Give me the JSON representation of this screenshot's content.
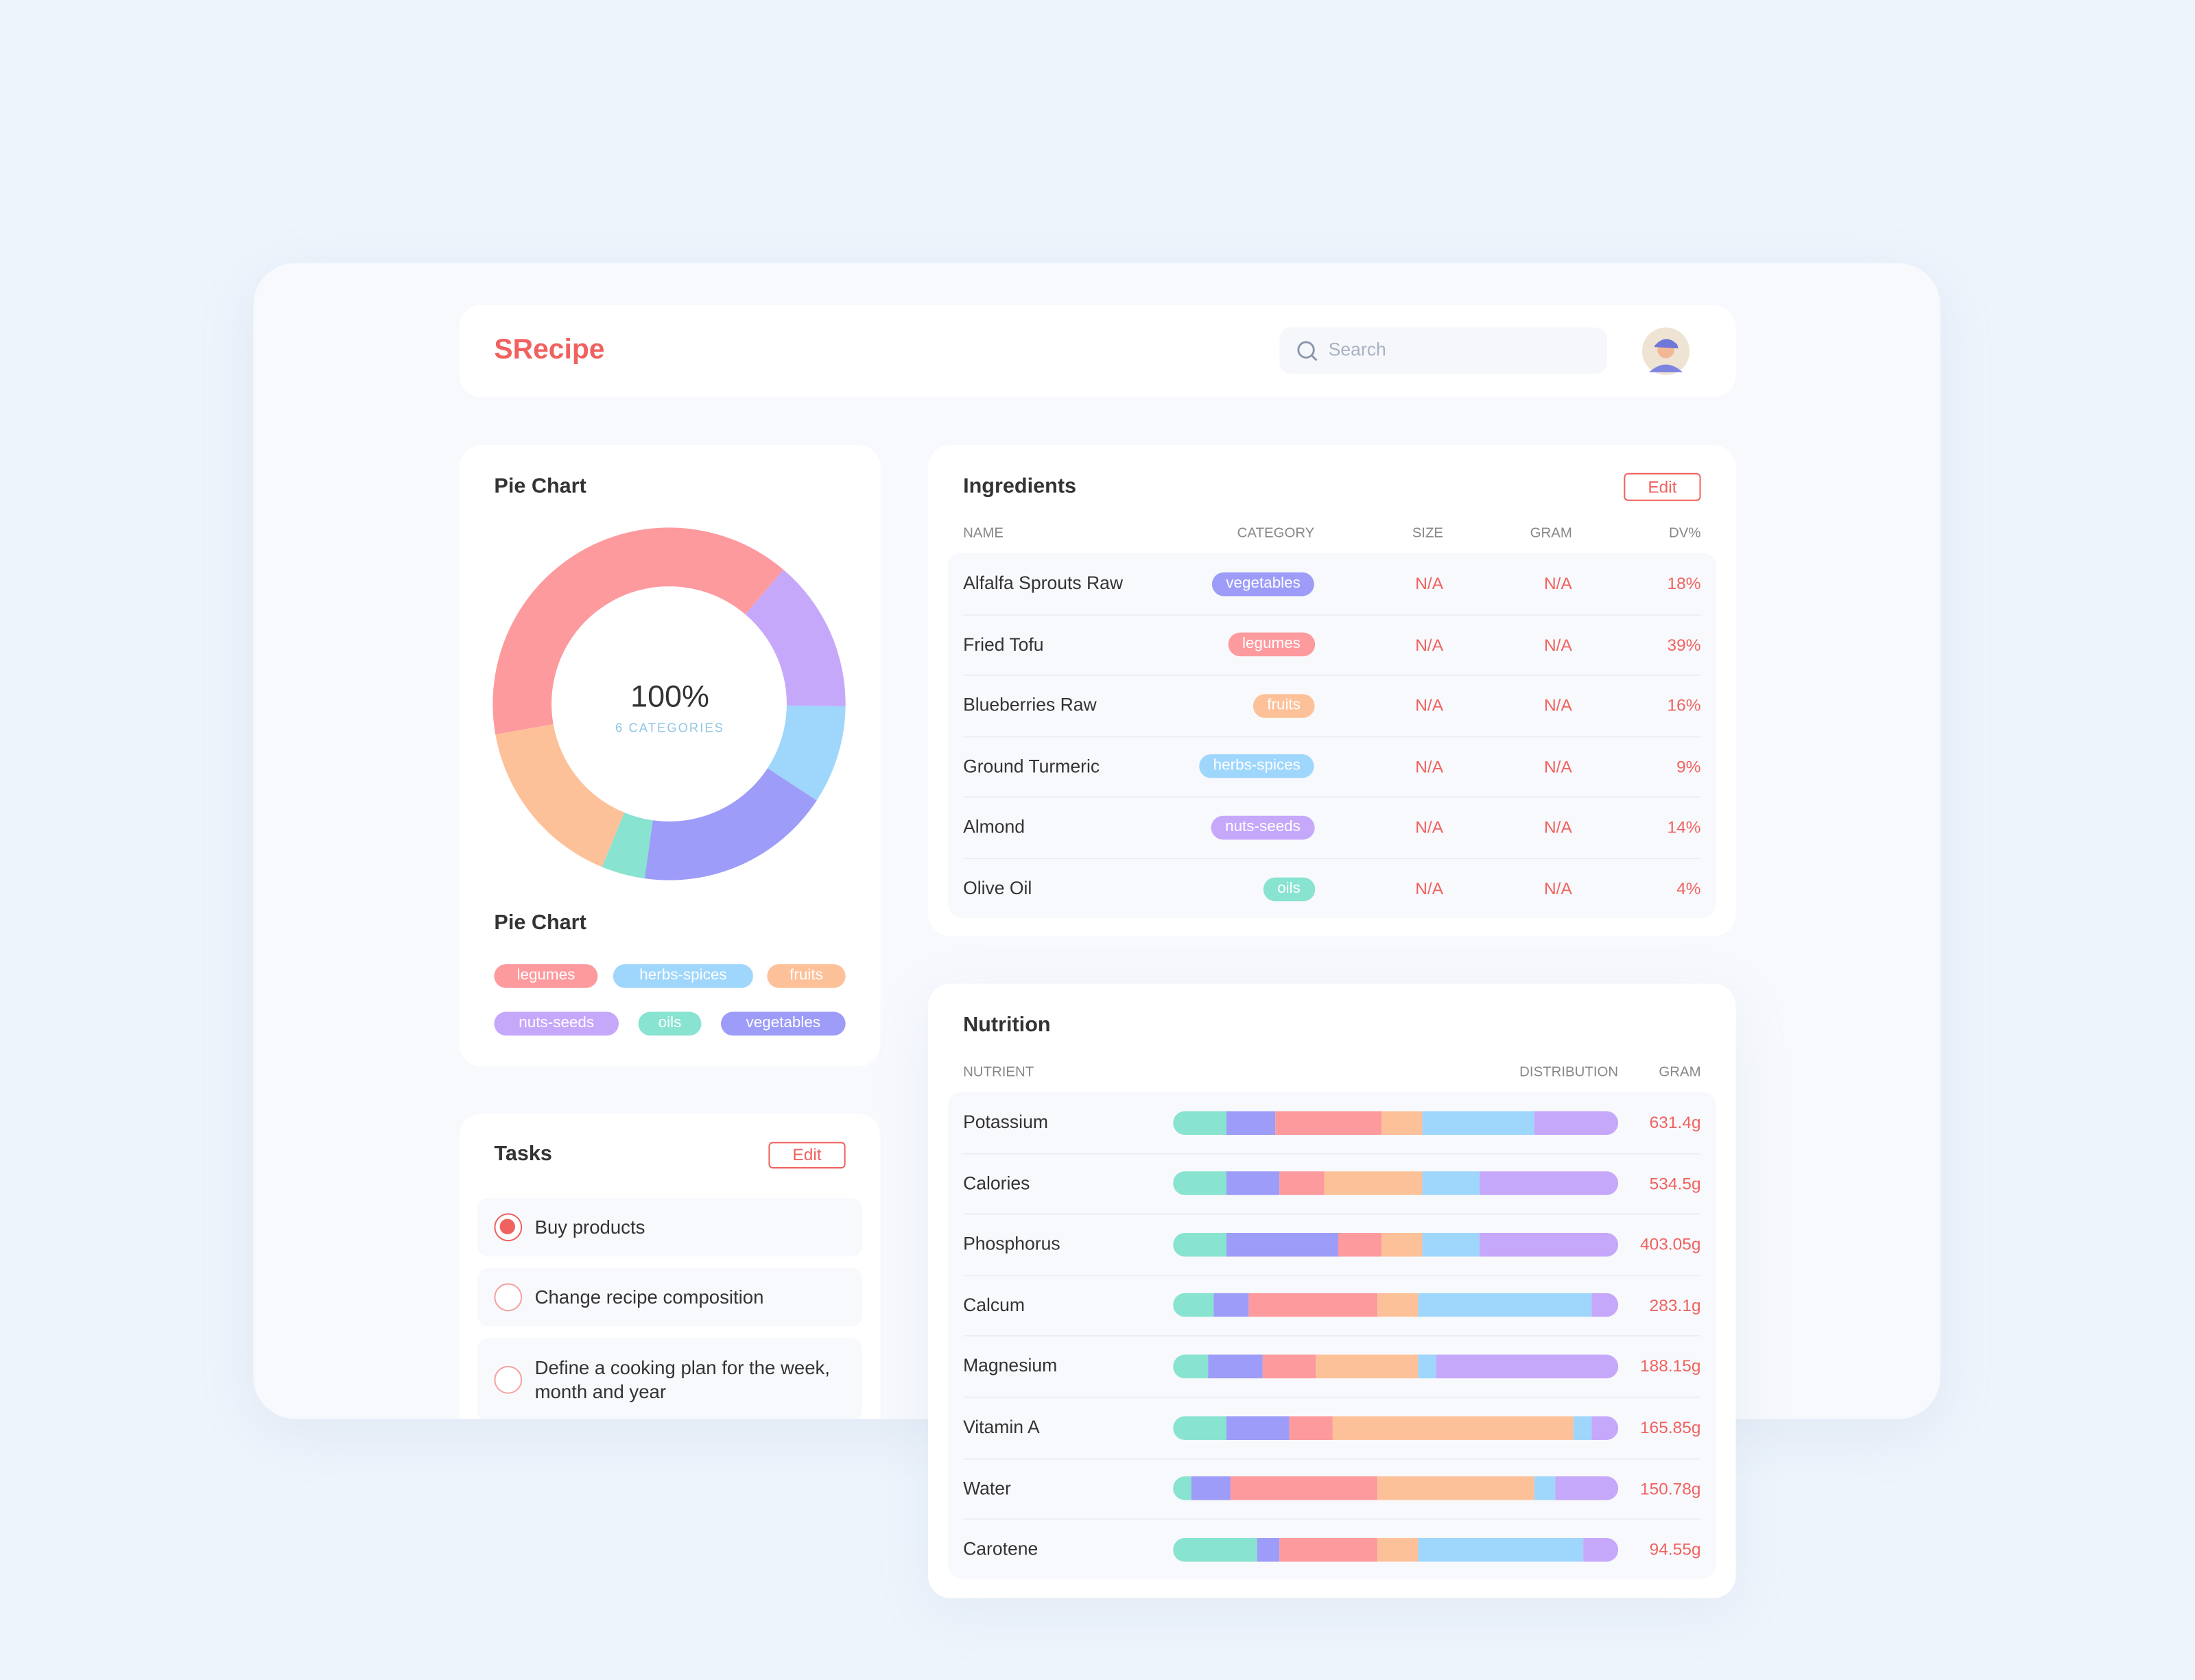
{
  "header": {
    "logo": "SRecipe",
    "search_placeholder": "Search"
  },
  "chart_data": {
    "type": "pie",
    "title": "Pie Chart",
    "legend_title": "Pie Chart",
    "center_label": "100%",
    "center_sublabel": "6 CATEGORIES",
    "categories": [
      "legumes",
      "nuts-seeds",
      "herbs-spices",
      "vegetables",
      "oils",
      "fruits"
    ],
    "values": [
      39,
      14,
      9,
      18,
      4,
      16
    ],
    "colors": [
      "#fd9a9e",
      "#c6a8fb",
      "#9fd6fc",
      "#9d9cf8",
      "#88e3d0",
      "#fdc199"
    ]
  },
  "ingredients": {
    "title": "Ingredients",
    "edit": "Edit",
    "columns": [
      "NAME",
      "CATEGORY",
      "SIZE",
      "GRAM",
      "DV%"
    ],
    "rows": [
      {
        "name": "Alfalfa Sprouts Raw",
        "category": "vegetables",
        "size": "N/A",
        "gram": "N/A",
        "dv": "18%"
      },
      {
        "name": "Fried Tofu",
        "category": "legumes",
        "size": "N/A",
        "gram": "N/A",
        "dv": "39%"
      },
      {
        "name": "Blueberries Raw",
        "category": "fruits",
        "size": "N/A",
        "gram": "N/A",
        "dv": "16%"
      },
      {
        "name": "Ground Turmeric",
        "category": "herbs-spices",
        "size": "N/A",
        "gram": "N/A",
        "dv": "9%"
      },
      {
        "name": "Almond",
        "category": "nuts-seeds",
        "size": "N/A",
        "gram": "N/A",
        "dv": "14%"
      },
      {
        "name": "Olive Oil",
        "category": "oils",
        "size": "N/A",
        "gram": "N/A",
        "dv": "4%"
      }
    ]
  },
  "nutrition": {
    "title": "Nutrition",
    "columns": [
      "NUTRIENT",
      "DISTRIBUTION",
      "GRAM"
    ],
    "segment_colors": [
      "#88e3d0",
      "#9d9cf8",
      "#fd9a9e",
      "#fdc199",
      "#9fd6fc",
      "#c6a8fb"
    ],
    "rows": [
      {
        "name": "Potassium",
        "distribution": [
          12,
          11,
          24,
          9,
          25,
          19
        ],
        "gram": "631.4g"
      },
      {
        "name": "Calories",
        "distribution": [
          12,
          12,
          10,
          22,
          13,
          31
        ],
        "gram": "534.5g"
      },
      {
        "name": "Phosphorus",
        "distribution": [
          12,
          25,
          10,
          9,
          13,
          31
        ],
        "gram": "403.05g"
      },
      {
        "name": "Calcum",
        "distribution": [
          9,
          8,
          29,
          9,
          39,
          6
        ],
        "gram": "283.1g"
      },
      {
        "name": "Magnesium",
        "distribution": [
          8,
          12,
          12,
          23,
          4,
          41
        ],
        "gram": "188.15g"
      },
      {
        "name": "Vitamin A",
        "distribution": [
          12,
          14,
          10,
          54,
          4,
          6
        ],
        "gram": "165.85g"
      },
      {
        "name": "Water",
        "distribution": [
          4,
          9,
          33,
          35,
          5,
          14
        ],
        "gram": "150.78g"
      },
      {
        "name": "Carotene",
        "distribution": [
          19,
          5,
          22,
          9,
          37,
          8
        ],
        "gram": "94.55g"
      }
    ]
  },
  "tasks": {
    "title": "Tasks",
    "edit": "Edit",
    "items": [
      {
        "text": "Buy products",
        "done": true
      },
      {
        "text": "Change recipe composition",
        "done": false
      },
      {
        "text": "Define a cooking plan for the week, month and year",
        "done": false
      }
    ]
  }
}
